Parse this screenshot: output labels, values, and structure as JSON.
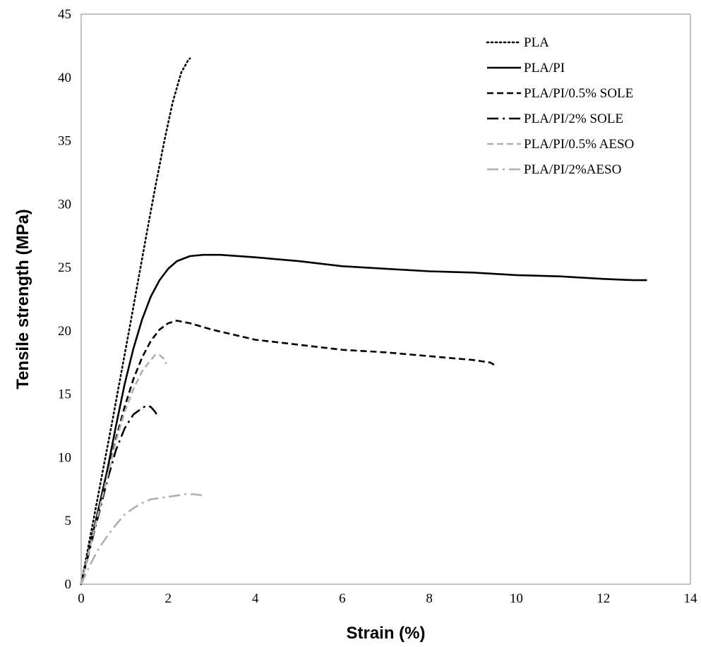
{
  "chart_data": {
    "type": "line",
    "title": "",
    "xlabel": "Strain (%)",
    "ylabel": "Tensile strength (MPa)",
    "xlim": [
      0,
      14
    ],
    "ylim": [
      0,
      45
    ],
    "x_ticks": [
      "0",
      "2",
      "4",
      "6",
      "8",
      "10",
      "12",
      "14"
    ],
    "y_ticks": [
      "0",
      "5",
      "10",
      "15",
      "20",
      "25",
      "30",
      "35",
      "40",
      "45"
    ],
    "grid": false,
    "legend_position": "top-right",
    "series": [
      {
        "name": "PLA",
        "color": "#000000",
        "style": "dotted",
        "points": [
          [
            0,
            0
          ],
          [
            0.1,
            1.8
          ],
          [
            0.2,
            3.6
          ],
          [
            0.35,
            6.3
          ],
          [
            0.5,
            9.0
          ],
          [
            0.7,
            12.6
          ],
          [
            0.9,
            16.3
          ],
          [
            1.1,
            20.0
          ],
          [
            1.3,
            23.8
          ],
          [
            1.5,
            27.6
          ],
          [
            1.7,
            31.3
          ],
          [
            1.9,
            34.8
          ],
          [
            2.1,
            38.0
          ],
          [
            2.3,
            40.4
          ],
          [
            2.45,
            41.3
          ],
          [
            2.5,
            41.5
          ]
        ]
      },
      {
        "name": "PLA/PI",
        "color": "#000000",
        "style": "solid",
        "points": [
          [
            0,
            0
          ],
          [
            0.2,
            3.0
          ],
          [
            0.4,
            6.0
          ],
          [
            0.6,
            9.0
          ],
          [
            0.8,
            12.5
          ],
          [
            1.0,
            15.8
          ],
          [
            1.2,
            18.6
          ],
          [
            1.4,
            20.9
          ],
          [
            1.6,
            22.7
          ],
          [
            1.8,
            24.0
          ],
          [
            2.0,
            24.9
          ],
          [
            2.2,
            25.5
          ],
          [
            2.5,
            25.9
          ],
          [
            2.8,
            26.0
          ],
          [
            3.2,
            26.0
          ],
          [
            4,
            25.8
          ],
          [
            5,
            25.5
          ],
          [
            6,
            25.1
          ],
          [
            7,
            24.9
          ],
          [
            8,
            24.7
          ],
          [
            9,
            24.6
          ],
          [
            10,
            24.4
          ],
          [
            11,
            24.3
          ],
          [
            12,
            24.1
          ],
          [
            12.7,
            24.0
          ],
          [
            13,
            24.0
          ]
        ]
      },
      {
        "name": "PLA/PI/0.5% SOLE",
        "color": "#000000",
        "style": "dashed",
        "points": [
          [
            0,
            0
          ],
          [
            0.2,
            3.0
          ],
          [
            0.4,
            5.8
          ],
          [
            0.6,
            8.6
          ],
          [
            0.8,
            11.5
          ],
          [
            1.0,
            14.0
          ],
          [
            1.2,
            16.2
          ],
          [
            1.4,
            17.9
          ],
          [
            1.6,
            19.2
          ],
          [
            1.8,
            20.1
          ],
          [
            2.0,
            20.6
          ],
          [
            2.2,
            20.8
          ],
          [
            2.5,
            20.6
          ],
          [
            3,
            20.1
          ],
          [
            3.5,
            19.7
          ],
          [
            4,
            19.3
          ],
          [
            5,
            18.9
          ],
          [
            6,
            18.5
          ],
          [
            7,
            18.3
          ],
          [
            8,
            18.0
          ],
          [
            9,
            17.7
          ],
          [
            9.4,
            17.5
          ],
          [
            9.55,
            17.2
          ]
        ]
      },
      {
        "name": "PLA/PI/2% SOLE",
        "color": "#000000",
        "style": "dashdot",
        "points": [
          [
            0,
            0
          ],
          [
            0.2,
            2.8
          ],
          [
            0.4,
            5.5
          ],
          [
            0.6,
            8.2
          ],
          [
            0.8,
            10.6
          ],
          [
            1.0,
            12.3
          ],
          [
            1.2,
            13.4
          ],
          [
            1.4,
            13.9
          ],
          [
            1.5,
            14.1
          ],
          [
            1.6,
            14.0
          ],
          [
            1.7,
            13.6
          ],
          [
            1.75,
            13.3
          ]
        ]
      },
      {
        "name": "PLA/PI/0.5% AESO",
        "color": "#b0b0b0",
        "style": "dashed",
        "points": [
          [
            0,
            0
          ],
          [
            0.2,
            2.9
          ],
          [
            0.4,
            5.7
          ],
          [
            0.6,
            8.5
          ],
          [
            0.8,
            11.3
          ],
          [
            1.0,
            13.6
          ],
          [
            1.2,
            15.4
          ],
          [
            1.4,
            16.8
          ],
          [
            1.6,
            17.7
          ],
          [
            1.7,
            18.1
          ],
          [
            1.8,
            18.1
          ],
          [
            1.9,
            17.8
          ],
          [
            1.95,
            17.4
          ]
        ]
      },
      {
        "name": "PLA/PI/2%AESO",
        "color": "#b0b0b0",
        "style": "dashdot",
        "points": [
          [
            0,
            0
          ],
          [
            0.2,
            1.5
          ],
          [
            0.4,
            2.8
          ],
          [
            0.6,
            3.8
          ],
          [
            0.8,
            4.7
          ],
          [
            1.0,
            5.5
          ],
          [
            1.2,
            6.0
          ],
          [
            1.4,
            6.4
          ],
          [
            1.6,
            6.7
          ],
          [
            1.8,
            6.8
          ],
          [
            2.0,
            6.9
          ],
          [
            2.2,
            7.0
          ],
          [
            2.4,
            7.1
          ],
          [
            2.6,
            7.1
          ],
          [
            2.8,
            7.0
          ]
        ]
      }
    ]
  }
}
